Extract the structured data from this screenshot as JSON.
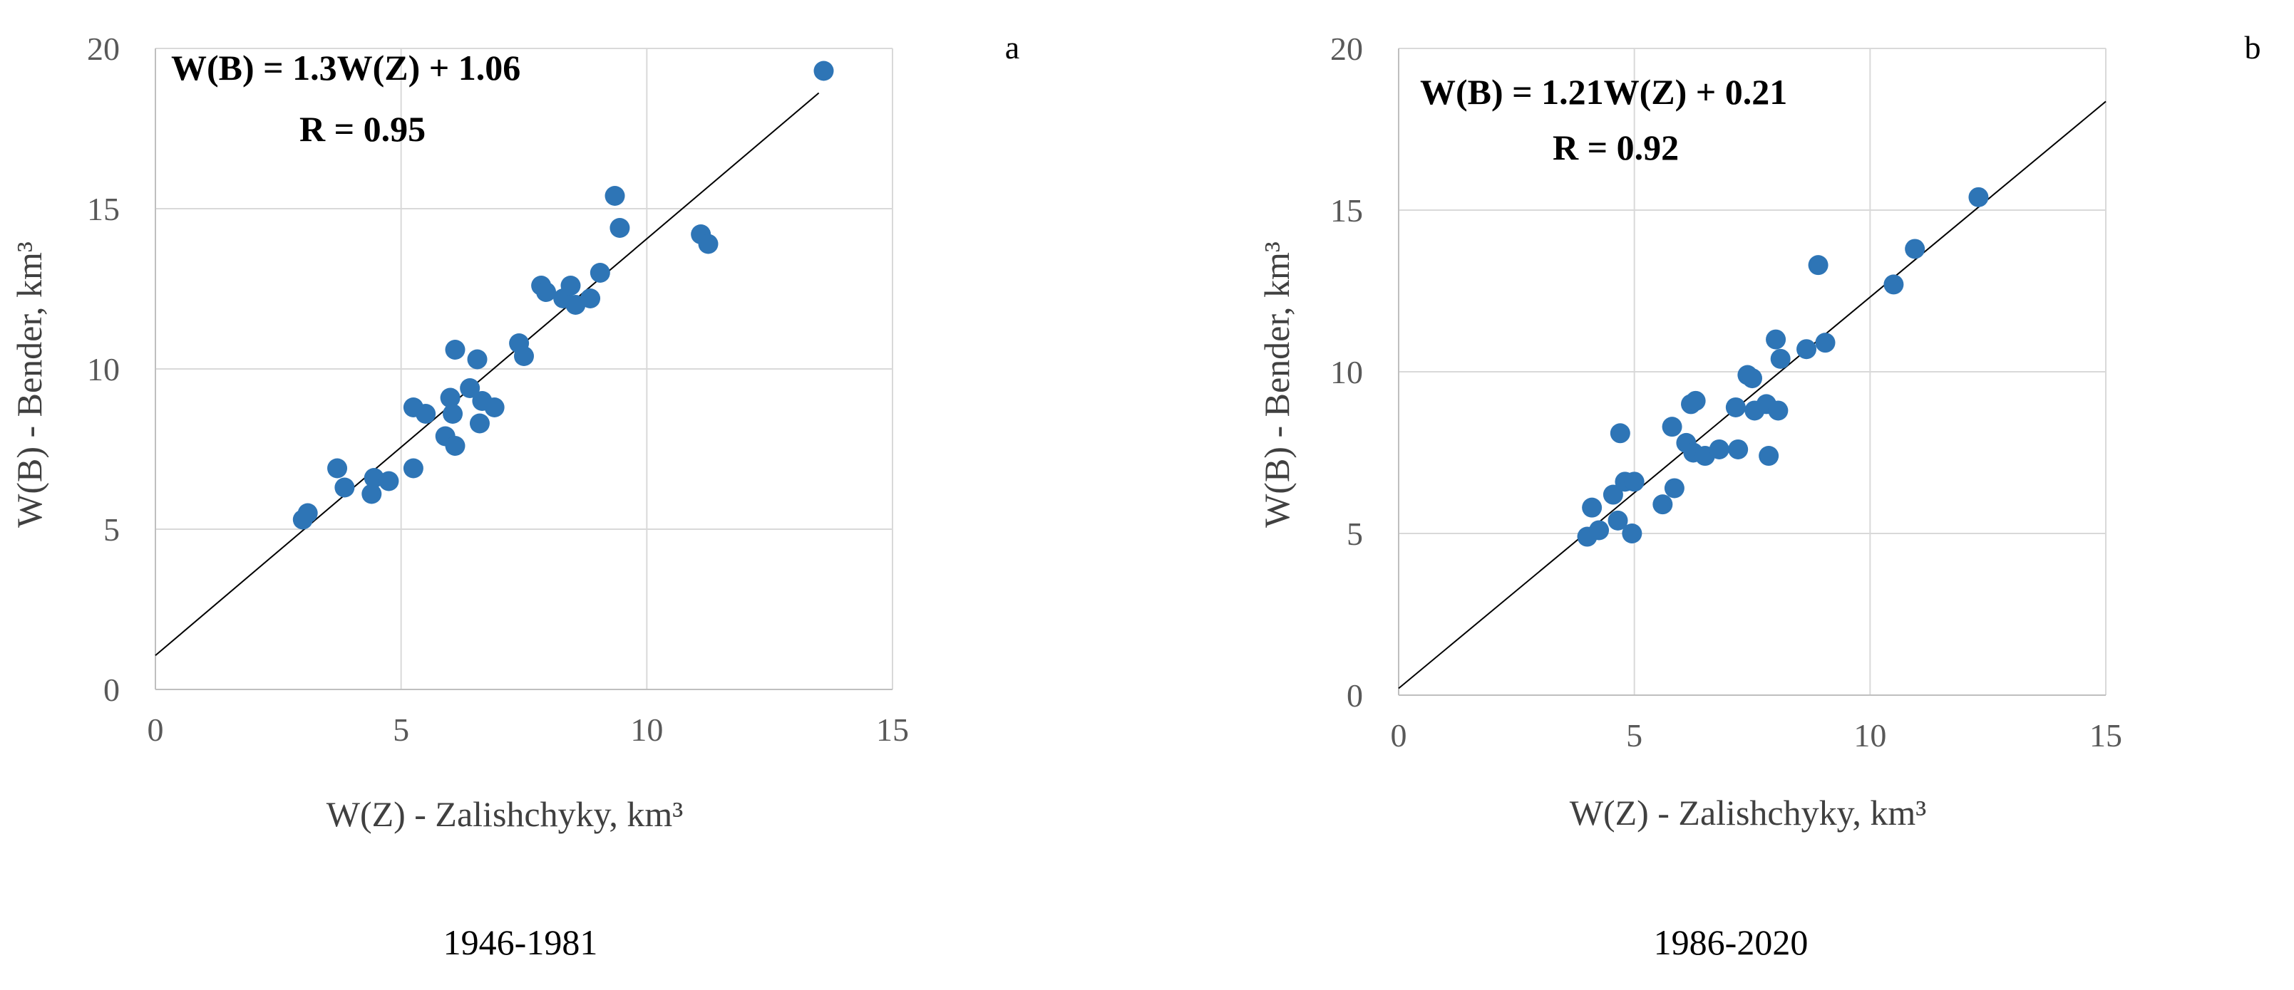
{
  "chart_data": [
    {
      "type": "scatter",
      "panel_label": "a",
      "caption": "1946-1981",
      "xlabel": "W(Z) - Zalishchyky, km³",
      "ylabel": "W(B) - Bender,  km³",
      "xlim": [
        0,
        15
      ],
      "ylim": [
        0,
        20
      ],
      "xticks": [
        0,
        5,
        10,
        15
      ],
      "yticks": [
        0,
        5,
        10,
        15,
        20
      ],
      "equation": "W(B) = 1.3W(Z) + 1.06",
      "r_label": "R = 0.95",
      "trend": {
        "slope": 1.3,
        "intercept": 1.06,
        "x_start": 0,
        "x_end": 13.5
      },
      "grid": true,
      "points": [
        {
          "x": 3.0,
          "y": 5.3
        },
        {
          "x": 3.1,
          "y": 5.5
        },
        {
          "x": 3.7,
          "y": 6.9
        },
        {
          "x": 3.85,
          "y": 6.3
        },
        {
          "x": 4.4,
          "y": 6.1
        },
        {
          "x": 4.45,
          "y": 6.6
        },
        {
          "x": 4.75,
          "y": 6.5
        },
        {
          "x": 5.25,
          "y": 8.8
        },
        {
          "x": 5.25,
          "y": 6.9
        },
        {
          "x": 5.5,
          "y": 8.6
        },
        {
          "x": 5.9,
          "y": 7.9
        },
        {
          "x": 6.0,
          "y": 9.1
        },
        {
          "x": 6.05,
          "y": 8.6
        },
        {
          "x": 6.1,
          "y": 7.6
        },
        {
          "x": 6.1,
          "y": 10.6
        },
        {
          "x": 6.4,
          "y": 9.4
        },
        {
          "x": 6.55,
          "y": 10.3
        },
        {
          "x": 6.6,
          "y": 8.3
        },
        {
          "x": 6.65,
          "y": 9.0
        },
        {
          "x": 6.9,
          "y": 8.8
        },
        {
          "x": 7.4,
          "y": 10.8
        },
        {
          "x": 7.5,
          "y": 10.4
        },
        {
          "x": 7.85,
          "y": 12.6
        },
        {
          "x": 7.95,
          "y": 12.4
        },
        {
          "x": 8.3,
          "y": 12.2
        },
        {
          "x": 8.45,
          "y": 12.6
        },
        {
          "x": 8.55,
          "y": 12.0
        },
        {
          "x": 8.85,
          "y": 12.2
        },
        {
          "x": 9.05,
          "y": 13.0
        },
        {
          "x": 9.35,
          "y": 15.4
        },
        {
          "x": 9.45,
          "y": 14.4
        },
        {
          "x": 11.1,
          "y": 14.2
        },
        {
          "x": 11.25,
          "y": 13.9
        },
        {
          "x": 13.6,
          "y": 19.3
        }
      ]
    },
    {
      "type": "scatter",
      "panel_label": "b",
      "caption": "1986-2020",
      "xlabel": "W(Z) - Zalishchyky, km³",
      "ylabel": "W(B) - Bender,  km³",
      "xlim": [
        0,
        15
      ],
      "ylim": [
        0,
        20
      ],
      "xticks": [
        0,
        5,
        10,
        15
      ],
      "yticks": [
        0,
        5,
        10,
        15,
        20
      ],
      "equation": "W(B) = 1.21W(Z)  + 0.21",
      "r_label": "R = 0.92",
      "trend": {
        "slope": 1.21,
        "intercept": 0.21,
        "x_start": 0,
        "x_end": 15
      },
      "grid": true,
      "points": [
        {
          "x": 4.0,
          "y": 4.9
        },
        {
          "x": 4.1,
          "y": 5.8
        },
        {
          "x": 4.25,
          "y": 5.1
        },
        {
          "x": 4.55,
          "y": 6.2
        },
        {
          "x": 4.65,
          "y": 5.4
        },
        {
          "x": 4.7,
          "y": 8.1
        },
        {
          "x": 4.8,
          "y": 6.6
        },
        {
          "x": 4.95,
          "y": 5.0
        },
        {
          "x": 5.0,
          "y": 6.6
        },
        {
          "x": 5.6,
          "y": 5.9
        },
        {
          "x": 5.8,
          "y": 8.3
        },
        {
          "x": 5.85,
          "y": 6.4
        },
        {
          "x": 6.1,
          "y": 7.8
        },
        {
          "x": 6.2,
          "y": 9.0
        },
        {
          "x": 6.25,
          "y": 7.5
        },
        {
          "x": 6.3,
          "y": 9.1
        },
        {
          "x": 6.5,
          "y": 7.4
        },
        {
          "x": 6.8,
          "y": 7.6
        },
        {
          "x": 7.15,
          "y": 8.9
        },
        {
          "x": 7.2,
          "y": 7.6
        },
        {
          "x": 7.4,
          "y": 9.9
        },
        {
          "x": 7.5,
          "y": 9.8
        },
        {
          "x": 7.55,
          "y": 8.8
        },
        {
          "x": 7.8,
          "y": 9.0
        },
        {
          "x": 7.85,
          "y": 7.4
        },
        {
          "x": 8.0,
          "y": 11.0
        },
        {
          "x": 8.05,
          "y": 8.8
        },
        {
          "x": 8.1,
          "y": 10.4
        },
        {
          "x": 8.65,
          "y": 10.7
        },
        {
          "x": 8.9,
          "y": 13.3
        },
        {
          "x": 9.05,
          "y": 10.9
        },
        {
          "x": 10.5,
          "y": 12.7
        },
        {
          "x": 10.95,
          "y": 13.8
        },
        {
          "x": 12.3,
          "y": 15.4
        }
      ]
    }
  ]
}
